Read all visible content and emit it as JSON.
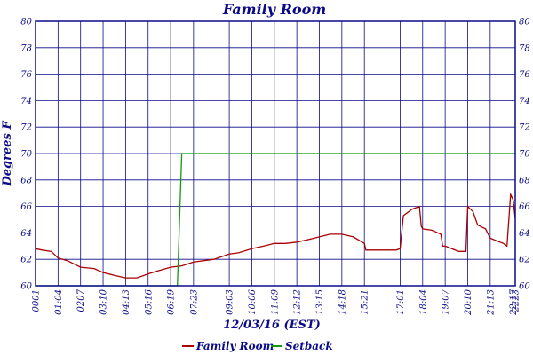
{
  "chart_data": {
    "type": "line",
    "title": "Family Room",
    "xlabel": "12/03/16 (EST)",
    "ylabel": "Degrees F",
    "ylim": [
      60,
      80
    ],
    "yticks": [
      60,
      62,
      64,
      66,
      68,
      70,
      72,
      74,
      76,
      78,
      80
    ],
    "xlim": [
      "00:01",
      "22:23"
    ],
    "xticks": [
      "0001",
      "01:04",
      "0207",
      "03:10",
      "04:13",
      "05:16",
      "06:19",
      "07:23",
      "09:03",
      "10:06",
      "11:09",
      "12:12",
      "13:15",
      "14:18",
      "15:21",
      "17:01",
      "18:04",
      "19:07",
      "20:10",
      "21:13",
      "22:17",
      "2223"
    ],
    "grid": true,
    "legend_position": "bottom-center",
    "colors": {
      "family_room": "#aa0000",
      "setback": "#119911",
      "text": "#0b0b8a",
      "grid": "#0b0b8a"
    },
    "series": [
      {
        "name": "Family Room",
        "x": [
          "00:01",
          "00:20",
          "00:45",
          "01:04",
          "01:30",
          "02:07",
          "02:45",
          "03:10",
          "03:40",
          "04:13",
          "04:45",
          "05:16",
          "05:40",
          "06:19",
          "06:50",
          "07:23",
          "08:20",
          "09:03",
          "09:30",
          "10:06",
          "10:40",
          "11:09",
          "11:40",
          "12:12",
          "12:45",
          "13:15",
          "13:45",
          "14:18",
          "14:50",
          "15:21",
          "15:25",
          "16:00",
          "16:50",
          "17:01",
          "17:10",
          "17:35",
          "17:55",
          "18:00",
          "18:04",
          "18:30",
          "18:55",
          "19:00",
          "19:07",
          "19:45",
          "20:05",
          "20:10",
          "20:25",
          "20:38",
          "20:45",
          "21:00",
          "21:13",
          "21:50",
          "22:00",
          "22:10",
          "22:17",
          "22:23"
        ],
        "values": [
          62.8,
          62.7,
          62.6,
          62.1,
          61.9,
          61.4,
          61.3,
          61.0,
          60.8,
          60.6,
          60.6,
          60.9,
          61.1,
          61.4,
          61.5,
          61.8,
          62.0,
          62.4,
          62.5,
          62.8,
          63.0,
          63.2,
          63.2,
          63.3,
          63.5,
          63.7,
          63.9,
          63.9,
          63.7,
          63.2,
          62.7,
          62.7,
          62.7,
          62.8,
          65.3,
          65.8,
          66.0,
          64.5,
          64.3,
          64.2,
          63.9,
          63.0,
          63.0,
          62.6,
          62.6,
          66.0,
          65.6,
          64.6,
          64.5,
          64.3,
          63.6,
          63.2,
          63.0,
          66.9,
          66.5,
          65.1
        ]
      },
      {
        "name": "Setback",
        "x": [
          "00:01",
          "06:19",
          "06:38",
          "06:50",
          "22:23"
        ],
        "values": [
          60,
          60,
          60,
          70,
          70
        ]
      }
    ],
    "legend": [
      "Family Room",
      "Setback"
    ]
  }
}
